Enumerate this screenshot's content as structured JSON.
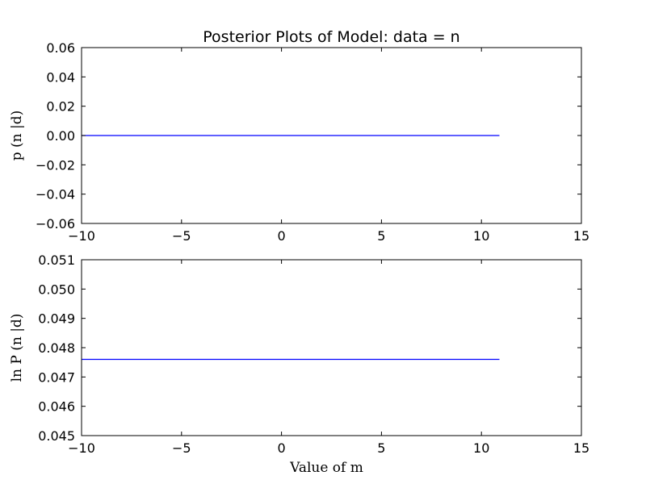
{
  "chart_data": [
    {
      "type": "line",
      "title": "Posterior Plots of Model: data = n",
      "xlabel": "",
      "ylabel": "p (n |d)",
      "xlim": [
        -10,
        15
      ],
      "ylim": [
        -0.06,
        0.06
      ],
      "x_ticks": [
        -10,
        -5,
        0,
        5,
        10,
        15
      ],
      "x_tick_labels": [
        "−10",
        "−5",
        "0",
        "5",
        "10",
        "15"
      ],
      "y_ticks": [
        -0.06,
        -0.04,
        -0.02,
        0.0,
        0.02,
        0.04,
        0.06
      ],
      "y_tick_labels": [
        "−0.06",
        "−0.04",
        "−0.02",
        "0.00",
        "0.02",
        "0.04",
        "0.06"
      ],
      "grid": false,
      "line_color": "#0000ff",
      "series": [
        {
          "x": [
            -10,
            10.9
          ],
          "y": [
            0.0,
            0.0
          ]
        }
      ]
    },
    {
      "type": "line",
      "title": "",
      "xlabel": "Value of m",
      "ylabel": "ln P (n |d)",
      "xlim": [
        -10,
        15
      ],
      "ylim": [
        0.045,
        0.051
      ],
      "x_ticks": [
        -10,
        -5,
        0,
        5,
        10,
        15
      ],
      "x_tick_labels": [
        "−10",
        "−5",
        "0",
        "5",
        "10",
        "15"
      ],
      "y_ticks": [
        0.045,
        0.046,
        0.047,
        0.048,
        0.049,
        0.05,
        0.051
      ],
      "y_tick_labels": [
        "0.045",
        "0.046",
        "0.047",
        "0.048",
        "0.049",
        "0.050",
        "0.051"
      ],
      "grid": false,
      "line_color": "#0000ff",
      "series": [
        {
          "x": [
            -10,
            10.9
          ],
          "y": [
            0.0476,
            0.0476
          ]
        }
      ]
    }
  ]
}
